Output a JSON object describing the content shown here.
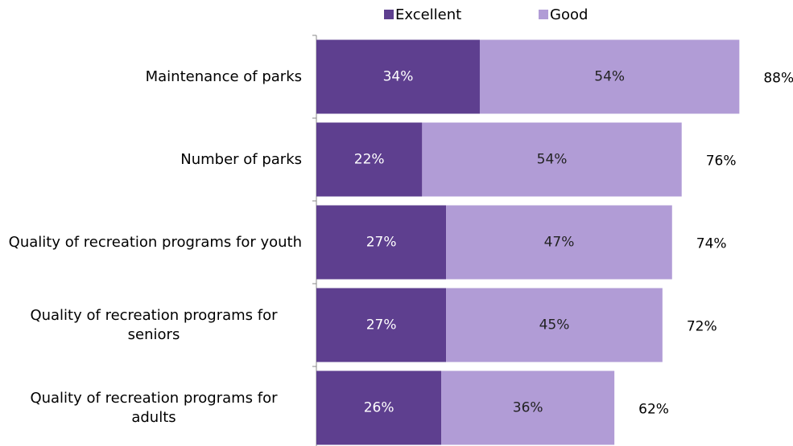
{
  "chart_data": {
    "type": "stacked-barh",
    "categories": [
      "Maintenance of parks",
      "Number of parks",
      "Quality of recreation programs for youth",
      "Quality of recreation programs for seniors",
      "Quality of recreation programs for adults"
    ],
    "series": [
      {
        "name": "Excellent",
        "color": "#5e3f8f",
        "values": [
          34,
          22,
          27,
          27,
          26
        ],
        "value_labels": [
          "34%",
          "22%",
          "27%",
          "27%",
          "26%"
        ]
      },
      {
        "name": "Good",
        "color": "#b19cd6",
        "values": [
          54,
          54,
          47,
          45,
          36
        ],
        "value_labels": [
          "54%",
          "54%",
          "47%",
          "45%",
          "36%"
        ]
      }
    ],
    "totals": [
      88,
      76,
      74,
      72,
      62
    ],
    "total_labels": [
      "88%",
      "76%",
      "74%",
      "72%",
      "62%"
    ],
    "legend": "top"
  }
}
